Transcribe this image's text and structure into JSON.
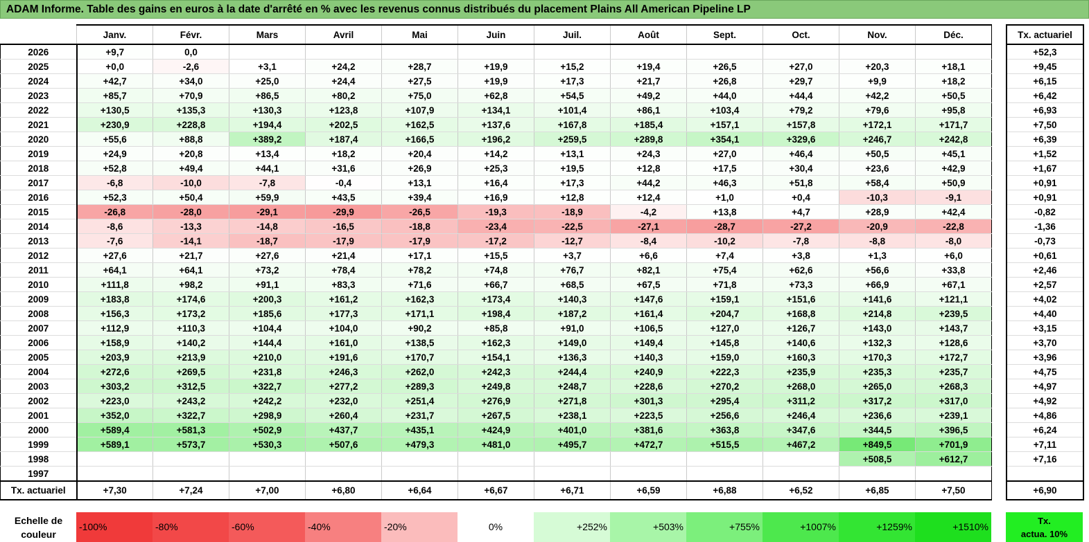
{
  "title": "ADAM Informe. Table des gains en euros à la date d'arrêté en % avec les revenus connus distribués du placement Plains All American Pipeline LP",
  "months": [
    "Janv.",
    "Févr.",
    "Mars",
    "Avril",
    "Mai",
    "Juin",
    "Juil.",
    "Août",
    "Sept.",
    "Oct.",
    "Nov.",
    "Déc."
  ],
  "side_header": "Tx. actuariel",
  "rows": [
    {
      "year": "2026",
      "values": [
        "+9,7",
        "0,0",
        "",
        "",
        "",
        "",
        "",
        "",
        "",
        "",
        "",
        ""
      ],
      "rate": "+52,3"
    },
    {
      "year": "2025",
      "values": [
        "+0,0",
        "-2,6",
        "+3,1",
        "+24,2",
        "+28,7",
        "+19,9",
        "+15,2",
        "+19,4",
        "+26,5",
        "+27,0",
        "+20,3",
        "+18,1"
      ],
      "rate": "+9,45"
    },
    {
      "year": "2024",
      "values": [
        "+42,7",
        "+34,0",
        "+25,0",
        "+24,4",
        "+27,5",
        "+19,9",
        "+17,3",
        "+21,7",
        "+26,8",
        "+29,7",
        "+9,9",
        "+18,2"
      ],
      "rate": "+6,15"
    },
    {
      "year": "2023",
      "values": [
        "+85,7",
        "+70,9",
        "+86,5",
        "+80,2",
        "+75,0",
        "+62,8",
        "+54,5",
        "+49,2",
        "+44,0",
        "+44,4",
        "+42,2",
        "+50,5"
      ],
      "rate": "+6,42"
    },
    {
      "year": "2022",
      "values": [
        "+130,5",
        "+135,3",
        "+130,3",
        "+123,8",
        "+107,9",
        "+134,1",
        "+101,4",
        "+86,1",
        "+103,4",
        "+79,2",
        "+79,6",
        "+95,8"
      ],
      "rate": "+6,93"
    },
    {
      "year": "2021",
      "values": [
        "+230,9",
        "+228,8",
        "+194,4",
        "+202,5",
        "+162,5",
        "+137,6",
        "+167,8",
        "+185,4",
        "+157,1",
        "+157,8",
        "+172,1",
        "+171,7"
      ],
      "rate": "+7,50"
    },
    {
      "year": "2020",
      "values": [
        "+55,6",
        "+88,8",
        "+389,2",
        "+187,4",
        "+166,5",
        "+196,2",
        "+259,5",
        "+289,8",
        "+354,1",
        "+329,6",
        "+246,7",
        "+242,8"
      ],
      "rate": "+6,39"
    },
    {
      "year": "2019",
      "values": [
        "+24,9",
        "+20,8",
        "+13,4",
        "+18,2",
        "+20,4",
        "+14,2",
        "+13,1",
        "+24,3",
        "+27,0",
        "+46,4",
        "+50,5",
        "+45,1"
      ],
      "rate": "+1,52"
    },
    {
      "year": "2018",
      "values": [
        "+52,8",
        "+49,4",
        "+44,1",
        "+31,6",
        "+26,9",
        "+25,3",
        "+19,5",
        "+12,8",
        "+17,5",
        "+30,4",
        "+23,6",
        "+42,9"
      ],
      "rate": "+1,67"
    },
    {
      "year": "2017",
      "values": [
        "-6,8",
        "-10,0",
        "-7,8",
        "-0,4",
        "+13,1",
        "+16,4",
        "+17,3",
        "+44,2",
        "+46,3",
        "+51,8",
        "+58,4",
        "+50,9"
      ],
      "rate": "+0,91"
    },
    {
      "year": "2016",
      "values": [
        "+52,3",
        "+50,4",
        "+59,9",
        "+43,5",
        "+39,4",
        "+16,9",
        "+12,8",
        "+12,4",
        "+1,0",
        "+0,4",
        "-10,3",
        "-9,1"
      ],
      "rate": "+0,91"
    },
    {
      "year": "2015",
      "values": [
        "-26,8",
        "-28,0",
        "-29,1",
        "-29,9",
        "-26,5",
        "-19,3",
        "-18,9",
        "-4,2",
        "+13,8",
        "+4,7",
        "+28,9",
        "+42,4"
      ],
      "rate": "-0,82"
    },
    {
      "year": "2014",
      "values": [
        "-8,6",
        "-13,3",
        "-14,8",
        "-16,5",
        "-18,8",
        "-23,4",
        "-22,5",
        "-27,1",
        "-28,7",
        "-27,2",
        "-20,9",
        "-22,8"
      ],
      "rate": "-1,36"
    },
    {
      "year": "2013",
      "values": [
        "-7,6",
        "-14,1",
        "-18,7",
        "-17,9",
        "-17,9",
        "-17,2",
        "-12,7",
        "-8,4",
        "-10,2",
        "-7,8",
        "-8,8",
        "-8,0"
      ],
      "rate": "-0,73"
    },
    {
      "year": "2012",
      "values": [
        "+27,6",
        "+21,7",
        "+27,6",
        "+21,4",
        "+17,1",
        "+15,5",
        "+3,7",
        "+6,6",
        "+7,4",
        "+3,8",
        "+1,3",
        "+6,0"
      ],
      "rate": "+0,61"
    },
    {
      "year": "2011",
      "values": [
        "+64,1",
        "+64,1",
        "+73,2",
        "+78,4",
        "+78,2",
        "+74,8",
        "+76,7",
        "+82,1",
        "+75,4",
        "+62,6",
        "+56,6",
        "+33,8"
      ],
      "rate": "+2,46"
    },
    {
      "year": "2010",
      "values": [
        "+111,8",
        "+98,2",
        "+91,1",
        "+83,3",
        "+71,6",
        "+66,7",
        "+68,5",
        "+67,5",
        "+71,8",
        "+73,3",
        "+66,9",
        "+67,1"
      ],
      "rate": "+2,57"
    },
    {
      "year": "2009",
      "values": [
        "+183,8",
        "+174,6",
        "+200,3",
        "+161,2",
        "+162,3",
        "+173,4",
        "+140,3",
        "+147,6",
        "+159,1",
        "+151,6",
        "+141,6",
        "+121,1"
      ],
      "rate": "+4,02"
    },
    {
      "year": "2008",
      "values": [
        "+156,3",
        "+173,2",
        "+185,6",
        "+177,3",
        "+171,1",
        "+198,4",
        "+187,2",
        "+161,4",
        "+204,7",
        "+168,8",
        "+214,8",
        "+239,5"
      ],
      "rate": "+4,40"
    },
    {
      "year": "2007",
      "values": [
        "+112,9",
        "+110,3",
        "+104,4",
        "+104,0",
        "+90,2",
        "+85,8",
        "+91,0",
        "+106,5",
        "+127,0",
        "+126,7",
        "+143,0",
        "+143,7"
      ],
      "rate": "+3,15"
    },
    {
      "year": "2006",
      "values": [
        "+158,9",
        "+140,2",
        "+144,4",
        "+161,0",
        "+138,5",
        "+162,3",
        "+149,0",
        "+149,4",
        "+145,8",
        "+140,6",
        "+132,3",
        "+128,6"
      ],
      "rate": "+3,70"
    },
    {
      "year": "2005",
      "values": [
        "+203,9",
        "+213,9",
        "+210,0",
        "+191,6",
        "+170,7",
        "+154,1",
        "+136,3",
        "+140,3",
        "+159,0",
        "+160,3",
        "+170,3",
        "+172,7"
      ],
      "rate": "+3,96"
    },
    {
      "year": "2004",
      "values": [
        "+272,6",
        "+269,5",
        "+231,8",
        "+246,3",
        "+262,0",
        "+242,3",
        "+244,4",
        "+240,9",
        "+222,3",
        "+235,9",
        "+235,3",
        "+235,7"
      ],
      "rate": "+4,75"
    },
    {
      "year": "2003",
      "values": [
        "+303,2",
        "+312,5",
        "+322,7",
        "+277,2",
        "+289,3",
        "+249,8",
        "+248,7",
        "+228,6",
        "+270,2",
        "+268,0",
        "+265,0",
        "+268,3"
      ],
      "rate": "+4,97"
    },
    {
      "year": "2002",
      "values": [
        "+223,0",
        "+243,2",
        "+242,2",
        "+232,0",
        "+251,4",
        "+276,9",
        "+271,8",
        "+301,3",
        "+295,4",
        "+311,2",
        "+317,2",
        "+317,0"
      ],
      "rate": "+4,92"
    },
    {
      "year": "2001",
      "values": [
        "+352,0",
        "+322,7",
        "+298,9",
        "+260,4",
        "+231,7",
        "+267,5",
        "+238,1",
        "+223,5",
        "+256,6",
        "+246,4",
        "+236,6",
        "+239,1"
      ],
      "rate": "+4,86"
    },
    {
      "year": "2000",
      "values": [
        "+589,4",
        "+581,3",
        "+502,9",
        "+437,7",
        "+435,1",
        "+424,9",
        "+401,0",
        "+381,6",
        "+363,8",
        "+347,6",
        "+344,5",
        "+396,5"
      ],
      "rate": "+6,24"
    },
    {
      "year": "1999",
      "values": [
        "+589,1",
        "+573,7",
        "+530,3",
        "+507,6",
        "+479,3",
        "+481,0",
        "+495,7",
        "+472,7",
        "+515,5",
        "+467,2",
        "+849,5",
        "+701,9"
      ],
      "rate": "+7,11"
    },
    {
      "year": "1998",
      "values": [
        "",
        "",
        "",
        "",
        "",
        "",
        "",
        "",
        "",
        "",
        "+508,5",
        "+612,7"
      ],
      "rate": "+7,16"
    },
    {
      "year": "1997",
      "values": [
        "",
        "",
        "",
        "",
        "",
        "",
        "",
        "",
        "",
        "",
        "",
        ""
      ],
      "rate": ""
    }
  ],
  "footer": {
    "label": "Tx. actuariel",
    "values": [
      "+7,30",
      "+7,24",
      "+7,00",
      "+6,80",
      "+6,64",
      "+6,67",
      "+6,71",
      "+6,59",
      "+6,88",
      "+6,52",
      "+6,85",
      "+7,50"
    ],
    "total": "+6,90"
  },
  "scale": {
    "label_line1": "Echelle de",
    "label_line2": "couleur",
    "swatches": [
      {
        "label": "-100%",
        "color": "#f03a3a",
        "kind": "neg"
      },
      {
        "label": "-80%",
        "color": "#f24848",
        "kind": "neg"
      },
      {
        "label": "-60%",
        "color": "#f45a5a",
        "kind": "neg"
      },
      {
        "label": "-40%",
        "color": "#f78080",
        "kind": "neg"
      },
      {
        "label": "-20%",
        "color": "#fbbcbc",
        "kind": "neg"
      },
      {
        "label": "0%",
        "color": "#ffffff",
        "kind": "zero"
      },
      {
        "label": "+252%",
        "color": "#d6fbd6",
        "kind": "pos"
      },
      {
        "label": "+503%",
        "color": "#a8f5a8",
        "kind": "pos"
      },
      {
        "label": "+755%",
        "color": "#7cef7c",
        "kind": "pos"
      },
      {
        "label": "+1007%",
        "color": "#4de84d",
        "kind": "pos"
      },
      {
        "label": "+1259%",
        "color": "#33e533",
        "kind": "pos"
      },
      {
        "label": "+1510%",
        "color": "#1edf1e",
        "kind": "pos"
      }
    ],
    "side_line1": "Tx.",
    "side_line2": "actua. 10%"
  }
}
